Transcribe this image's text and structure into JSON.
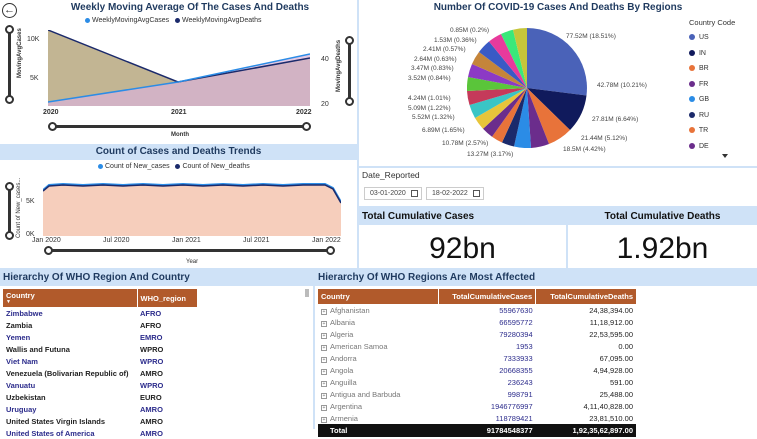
{
  "weekly_chart": {
    "title": "Weekly Moving Average Of The Cases And Deaths",
    "legend": [
      {
        "name": "WeeklyMovingAvgCases",
        "color": "#2b8ce6"
      },
      {
        "name": "WeeklyMovingAvgDeaths",
        "color": "#1b2a6b"
      }
    ],
    "y_left_label": "MovingAvgCases",
    "y_right_label": "MovingAvgDeaths",
    "x_label": "Month",
    "y_left_ticks": [
      "10K",
      "5K"
    ],
    "y_right_ticks": [
      "40",
      "20"
    ],
    "x_ticks": [
      "2020",
      "2021",
      "2022"
    ]
  },
  "trend_chart": {
    "title": "Count of Cases and Deaths Trends",
    "legend": [
      {
        "name": "Count of New_cases",
        "color": "#2b8ce6"
      },
      {
        "name": "Count of New_deaths",
        "color": "#1b2a6b"
      }
    ],
    "y_label": "Count of New_cases...",
    "x_label": "Year",
    "y_ticks": [
      "5K",
      "0K"
    ],
    "x_ticks": [
      "Jan 2020",
      "Jul 2020",
      "Jan 2021",
      "Jul 2021",
      "Jan 2022"
    ]
  },
  "pie_chart": {
    "title": "Number Of COVID-19 Cases And Deaths By Regions",
    "legend_title": "Country Code",
    "labels": [
      "0.85M (0.2%)",
      "1.53M (0.36%)",
      "2.41M (0.57%)",
      "2.64M (0.63%)",
      "3.47M (0.83%)",
      "3.52M (0.84%)",
      "4.24M (1.01%)",
      "5.09M (1.22%)",
      "5.52M (1.32%)",
      "6.89M (1.65%)",
      "10.78M (2.57%)",
      "13.27M (3.17%)",
      "77.52M (18.51%)",
      "42.78M (10.21%)",
      "27.81M (6.64%)",
      "21.44M (5.12%)",
      "18.5M (4.42%)"
    ],
    "legend": [
      {
        "code": "US",
        "color": "#4a62b8"
      },
      {
        "code": "IN",
        "color": "#101a5c"
      },
      {
        "code": "BR",
        "color": "#e8733a"
      },
      {
        "code": "FR",
        "color": "#6b2d8c"
      },
      {
        "code": "GB",
        "color": "#2b8ce6"
      },
      {
        "code": "RU",
        "color": "#1b2a6b"
      },
      {
        "code": "TR",
        "color": "#e8733a"
      },
      {
        "code": "DE",
        "color": "#6b2d8c"
      }
    ]
  },
  "date_filter": {
    "label": "Date_Reported",
    "start": "03-01-2020",
    "end": "18-02-2022"
  },
  "kpis": {
    "cases_title": "Total Cumulative Cases",
    "cases_value": "92bn",
    "deaths_title": "Total Cumulative Deaths",
    "deaths_value": "1.92bn"
  },
  "who_hierarchy": {
    "title": "Hierarchy Of WHO Region And Country",
    "columns": [
      "Country",
      "WHO_region"
    ],
    "rows": [
      [
        "Zimbabwe",
        "AFRO"
      ],
      [
        "Zambia",
        "AFRO"
      ],
      [
        "Yemen",
        "EMRO"
      ],
      [
        "Wallis and Futuna",
        "WPRO"
      ],
      [
        "Viet Nam",
        "WPRO"
      ],
      [
        "Venezuela (Bolivarian Republic of)",
        "AMRO"
      ],
      [
        "Vanuatu",
        "WPRO"
      ],
      [
        "Uzbekistan",
        "EURO"
      ],
      [
        "Uruguay",
        "AMRO"
      ],
      [
        "United States Virgin Islands",
        "AMRO"
      ],
      [
        "United States of America",
        "AMRO"
      ]
    ]
  },
  "affected_table": {
    "title": "Hierarchy Of WHO Regions Are Most Affected",
    "columns": [
      "Country",
      "TotalCumulativeCases",
      "TotalCumulativeDeaths"
    ],
    "rows": [
      [
        "Afghanistan",
        "55967630",
        "24,38,394.00"
      ],
      [
        "Albania",
        "66595772",
        "11,18,912.00"
      ],
      [
        "Algeria",
        "79280394",
        "22,53,595.00"
      ],
      [
        "American Samoa",
        "1953",
        "0.00"
      ],
      [
        "Andorra",
        "7333933",
        "67,095.00"
      ],
      [
        "Angola",
        "20668355",
        "4,94,928.00"
      ],
      [
        "Anguilla",
        "236243",
        "591.00"
      ],
      [
        "Antigua and Barbuda",
        "998791",
        "25,488.00"
      ],
      [
        "Argentina",
        "1946776997",
        "4,11,40,828.00"
      ],
      [
        "Armenia",
        "118789421",
        "23,81,510.00"
      ]
    ],
    "total_label": "Total",
    "total_cases": "91784548377",
    "total_deaths": "1,92,35,62,897.00"
  }
}
